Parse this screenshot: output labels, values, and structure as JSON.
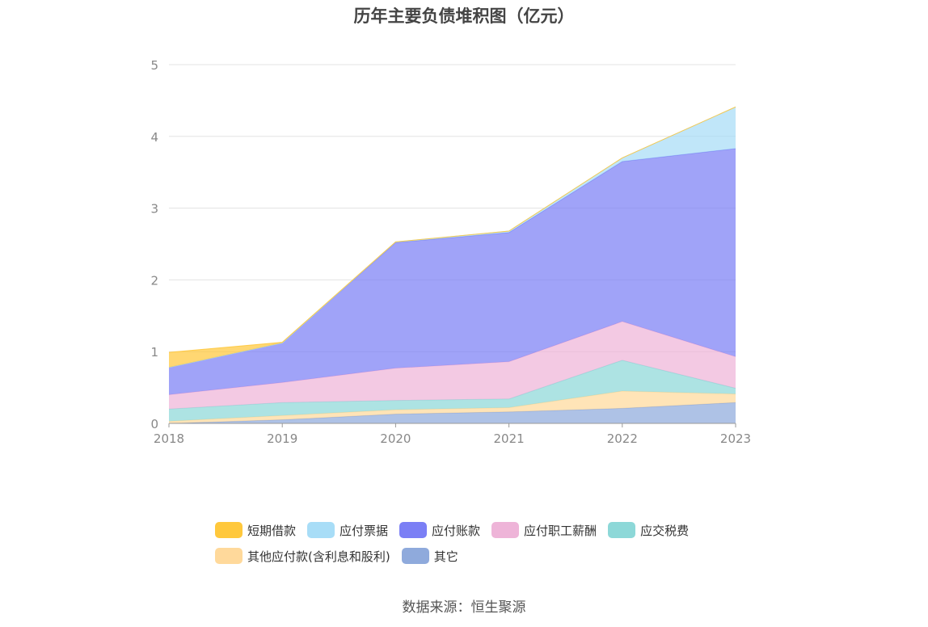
{
  "chart_data": {
    "type": "area",
    "stacked": true,
    "title": "历年主要负债堆积图（亿元）",
    "x": [
      "2018",
      "2019",
      "2020",
      "2021",
      "2022",
      "2023"
    ],
    "ylim": [
      0,
      5
    ],
    "yticks": [
      "0",
      "1",
      "2",
      "3",
      "4",
      "5"
    ],
    "grid": true,
    "legend_position": "bottom",
    "series": [
      {
        "name": "其它",
        "color": "#8FAADC",
        "values": [
          0.0,
          0.05,
          0.13,
          0.16,
          0.21,
          0.29
        ]
      },
      {
        "name": "其他应付款(含利息和股利)",
        "color": "#FFD99B",
        "values": [
          0.03,
          0.06,
          0.06,
          0.06,
          0.24,
          0.12
        ]
      },
      {
        "name": "应交税费",
        "color": "#8DD8D8",
        "values": [
          0.17,
          0.18,
          0.13,
          0.12,
          0.43,
          0.08
        ]
      },
      {
        "name": "应付职工薪酬",
        "color": "#EEB4D8",
        "values": [
          0.2,
          0.28,
          0.45,
          0.52,
          0.54,
          0.44
        ]
      },
      {
        "name": "应付账款",
        "color": "#7B7FF5",
        "values": [
          0.38,
          0.55,
          1.75,
          1.8,
          2.23,
          2.9
        ]
      },
      {
        "name": "应付票据",
        "color": "#A8DDF7",
        "values": [
          0.0,
          0.0,
          0.01,
          0.02,
          0.05,
          0.58
        ]
      },
      {
        "name": "短期借款",
        "color": "#FFC83C",
        "values": [
          0.21,
          0.01,
          0.0,
          0.0,
          0.0,
          0.0
        ]
      }
    ]
  },
  "legend": {
    "row1": [
      "短期借款",
      "应付票据",
      "应付账款",
      "应付职工薪酬",
      "应交税费"
    ],
    "row2": [
      "其他应付款(含利息和股利)",
      "其它"
    ]
  },
  "colors": {
    "短期借款": "#FFC83C",
    "应付票据": "#A8DDF7",
    "应付账款": "#7B7FF5",
    "应付职工薪酬": "#EEB4D8",
    "应交税费": "#8DD8D8",
    "其他应付款(含利息和股利)": "#FFD99B",
    "其它": "#8FAADC"
  },
  "source": "数据来源：恒生聚源"
}
